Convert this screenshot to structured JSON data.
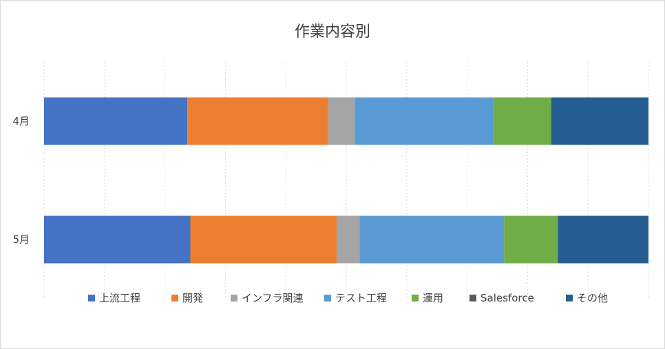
{
  "chart_data": {
    "type": "bar",
    "orientation": "horizontal",
    "stacked": "percent",
    "title": "作業内容別",
    "categories": [
      "4月",
      "5月"
    ],
    "series": [
      {
        "name": "上流工程",
        "color": "#4472C4",
        "values": [
          23.7,
          24.2
        ]
      },
      {
        "name": "開発",
        "color": "#ED7D31",
        "values": [
          23.3,
          24.2
        ]
      },
      {
        "name": "インフラ関連",
        "color": "#A5A5A5",
        "values": [
          4.4,
          3.8
        ]
      },
      {
        "name": "テスト工程",
        "color": "#5B9BD5",
        "values": [
          22.9,
          23.9
        ]
      },
      {
        "name": "運用",
        "color": "#70AD47",
        "values": [
          9.6,
          8.9
        ]
      },
      {
        "name": "Salesforce",
        "color": "#5A5A5A",
        "values": [
          0,
          0
        ]
      },
      {
        "name": "その他",
        "color": "#255E91",
        "values": [
          16.1,
          15.0
        ]
      }
    ],
    "xlim": [
      0,
      100
    ],
    "grid": true,
    "legend_position": "bottom"
  }
}
